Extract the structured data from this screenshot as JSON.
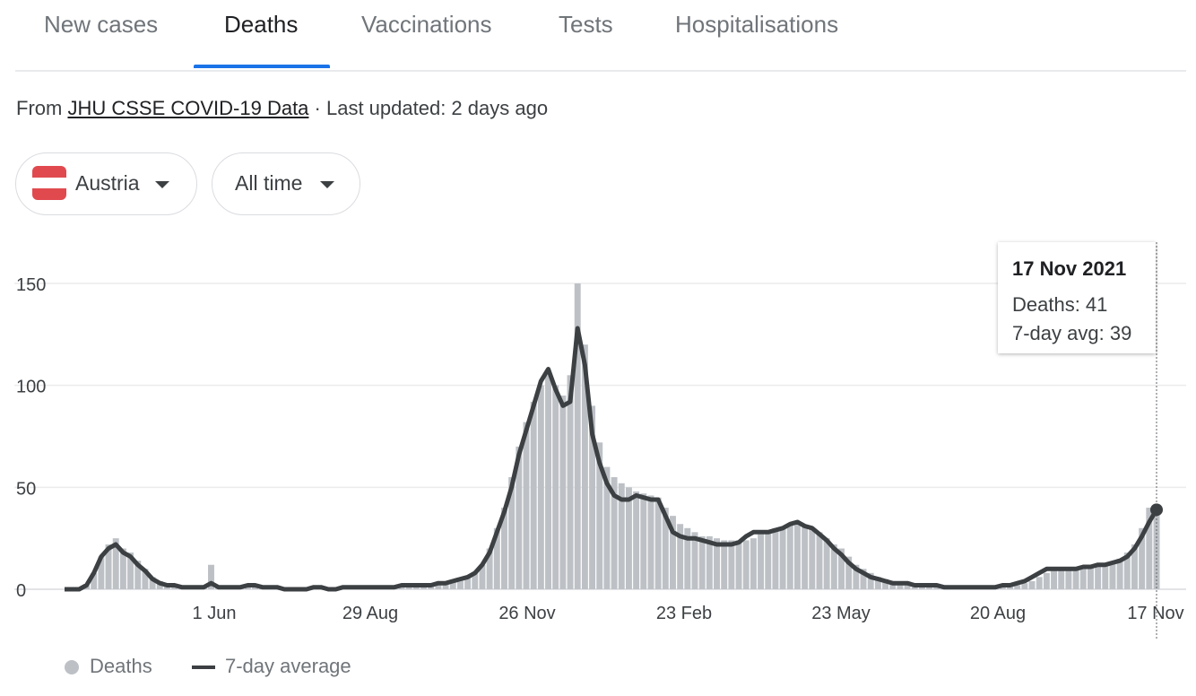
{
  "tabs": [
    {
      "label": "New cases"
    },
    {
      "label": "Deaths"
    },
    {
      "label": "Vaccinations"
    },
    {
      "label": "Tests"
    },
    {
      "label": "Hospitalisations"
    }
  ],
  "source": {
    "prefix": "From",
    "link_text": "JHU CSSE COVID-19 Data",
    "suffix": "· Last updated: 2 days ago"
  },
  "filters": {
    "country": "Austria",
    "country_icon": "austria-flag-icon",
    "range": "All time",
    "dropdown_icon": "caret-down-icon"
  },
  "colors": {
    "bars": "#bdc1c6",
    "avg_line": "#3c4043",
    "tab_accent": "#1a73e8",
    "flag_red": "#e04a4f",
    "flag_white": "#ffffff"
  },
  "tooltip": {
    "date": "17 Nov 2021",
    "deaths": "Deaths: 41",
    "avg": "7-day avg: 39"
  },
  "legend": {
    "deaths": "Deaths",
    "avg": "7-day average"
  },
  "chart_data": {
    "type": "bar",
    "title": "",
    "xlabel": "",
    "ylabel": "",
    "ylim": [
      0,
      170
    ],
    "yticks": [
      0,
      50,
      100,
      150
    ],
    "x_tick_labels": [
      "1 Jun",
      "29 Aug",
      "26 Nov",
      "23 Feb",
      "23 May",
      "20 Aug",
      "17 Nov"
    ],
    "x_range": [
      "2020-03-01",
      "2021-11-17"
    ],
    "grid": true,
    "legend_position": "bottom-left",
    "series": [
      {
        "name": "Deaths",
        "kind": "bar",
        "sampling": "every 5 days, first point 2020-03-01",
        "values": [
          0,
          0,
          0,
          2,
          8,
          16,
          22,
          25,
          20,
          18,
          14,
          10,
          6,
          4,
          2,
          2,
          1,
          1,
          1,
          1,
          12,
          1,
          1,
          1,
          1,
          2,
          2,
          1,
          1,
          1,
          0,
          0,
          0,
          0,
          1,
          1,
          0,
          0,
          1,
          1,
          1,
          1,
          1,
          1,
          1,
          1,
          2,
          2,
          2,
          2,
          2,
          3,
          3,
          4,
          5,
          6,
          8,
          12,
          20,
          30,
          40,
          55,
          70,
          82,
          92,
          100,
          105,
          100,
          95,
          105,
          150,
          120,
          90,
          72,
          60,
          55,
          52,
          50,
          48,
          47,
          46,
          45,
          40,
          36,
          32,
          30,
          28,
          26,
          26,
          25,
          24,
          24,
          24,
          24,
          25,
          27,
          29,
          30,
          30,
          32,
          33,
          31,
          30,
          28,
          25,
          22,
          20,
          16,
          12,
          10,
          8,
          6,
          5,
          4,
          3,
          3,
          3,
          2,
          2,
          2,
          2,
          1,
          1,
          1,
          1,
          1,
          1,
          1,
          1,
          2,
          2,
          3,
          4,
          6,
          8,
          10,
          10,
          10,
          10,
          10,
          11,
          12,
          12,
          13,
          15,
          18,
          22,
          30,
          40,
          41
        ]
      },
      {
        "name": "7-day average",
        "kind": "line",
        "sampling": "every 5 days, first point 2020-03-01",
        "values": [
          0,
          0,
          0,
          2,
          8,
          16,
          20,
          22,
          18,
          16,
          12,
          9,
          5,
          3,
          2,
          2,
          1,
          1,
          1,
          1,
          3,
          1,
          1,
          1,
          1,
          2,
          2,
          1,
          1,
          1,
          0,
          0,
          0,
          0,
          1,
          1,
          0,
          0,
          1,
          1,
          1,
          1,
          1,
          1,
          1,
          1,
          2,
          2,
          2,
          2,
          2,
          3,
          3,
          4,
          5,
          6,
          8,
          12,
          18,
          28,
          38,
          50,
          66,
          78,
          90,
          102,
          108,
          98,
          90,
          92,
          128,
          110,
          76,
          62,
          52,
          46,
          44,
          44,
          46,
          45,
          44,
          44,
          36,
          28,
          26,
          25,
          25,
          24,
          23,
          22,
          22,
          22,
          23,
          26,
          28,
          28,
          28,
          29,
          30,
          32,
          33,
          31,
          30,
          27,
          24,
          20,
          17,
          13,
          10,
          8,
          6,
          5,
          4,
          3,
          3,
          3,
          2,
          2,
          2,
          2,
          1,
          1,
          1,
          1,
          1,
          1,
          1,
          1,
          2,
          2,
          3,
          4,
          6,
          8,
          10,
          10,
          10,
          10,
          10,
          11,
          11,
          12,
          12,
          13,
          14,
          16,
          20,
          26,
          33,
          39
        ]
      }
    ]
  }
}
